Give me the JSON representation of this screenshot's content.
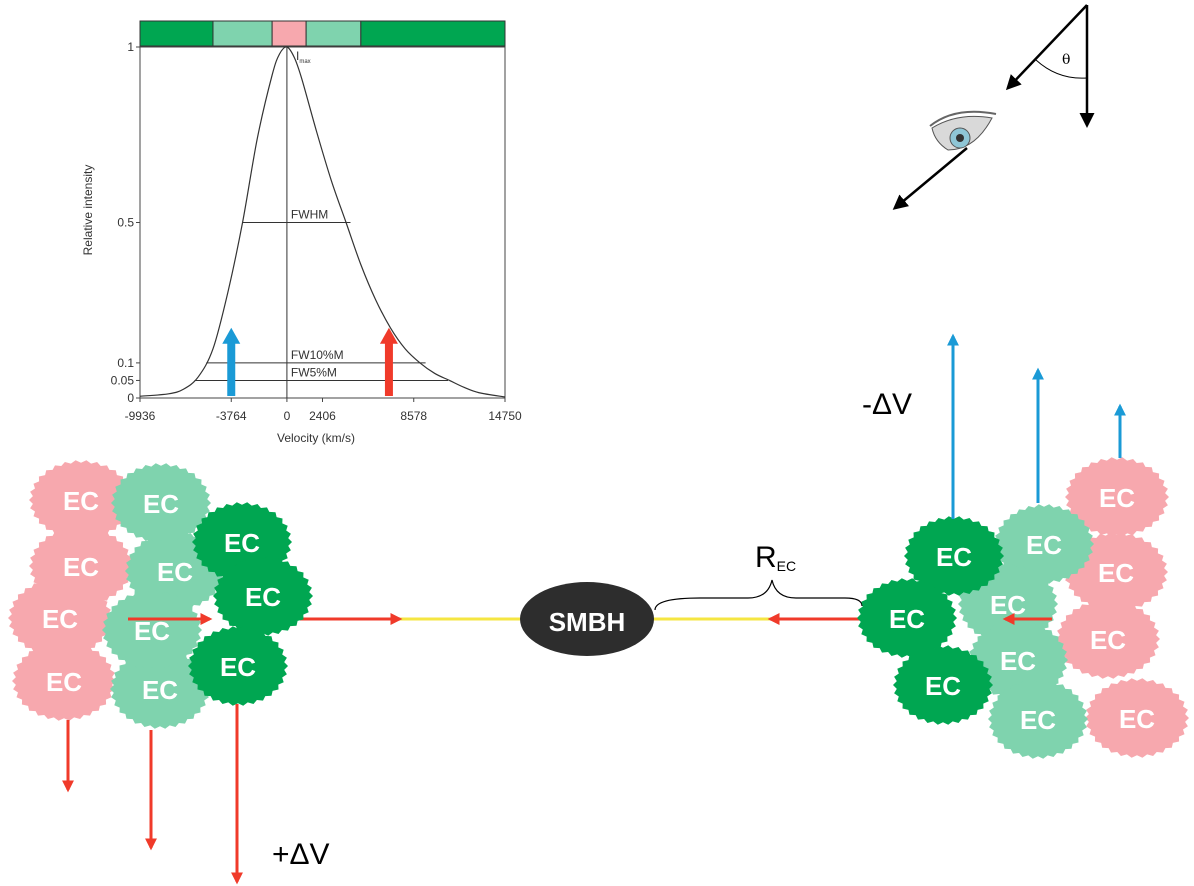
{
  "chart_data": {
    "type": "line",
    "xlabel": "Velocity (km/s)",
    "ylabel": "Relative intensity",
    "xlim": [
      -9936,
      14750
    ],
    "ylim": [
      0,
      1
    ],
    "x_ticks": [
      "-9936",
      "-3764",
      "0",
      "2406",
      "8578",
      "14750"
    ],
    "y_ticks": [
      "0",
      "0.05",
      "0.1",
      "0.5",
      "1"
    ],
    "peak_label": "I",
    "peak_label_sub": "max",
    "width_levels": [
      {
        "label": "FWHM",
        "y": 0.5,
        "x_left": -2980,
        "x_right": 4300
      },
      {
        "label": "FW10%M",
        "y": 0.1,
        "x_left": -5450,
        "x_right": 9380
      },
      {
        "label": "FW5%M",
        "y": 0.05,
        "x_left": -6250,
        "x_right": 10900
      }
    ],
    "profile_x": [
      -9936,
      -8000,
      -7000,
      -6000,
      -5000,
      -4000,
      -3000,
      -2000,
      -1000,
      -500,
      0,
      500,
      1000,
      2000,
      3000,
      4000,
      5000,
      6000,
      7000,
      8000,
      9000,
      10000,
      11000,
      12000,
      13000,
      14750
    ],
    "profile_y": [
      0.005,
      0.012,
      0.025,
      0.06,
      0.14,
      0.3,
      0.5,
      0.74,
      0.92,
      0.98,
      1.0,
      0.97,
      0.91,
      0.76,
      0.62,
      0.5,
      0.38,
      0.28,
      0.2,
      0.14,
      0.1,
      0.07,
      0.05,
      0.03,
      0.015,
      0.003
    ],
    "arrows": [
      {
        "color": "#1a9ad6",
        "x": -3764,
        "top": 0.2
      },
      {
        "color": "#f03a2a",
        "x": 6900,
        "top": 0.2
      }
    ],
    "colorbar": [
      {
        "x0": -9936,
        "x1": -5000,
        "color": "#00a651"
      },
      {
        "x0": -5000,
        "x1": -1000,
        "color": "#7fd3ae"
      },
      {
        "x0": -1000,
        "x1": 1300,
        "color": "#f7a8ae"
      },
      {
        "x0": 1300,
        "x1": 5000,
        "color": "#7fd3ae"
      },
      {
        "x0": 5000,
        "x1": 14750,
        "color": "#00a651"
      }
    ]
  },
  "diagram": {
    "center_label": "SMBH",
    "cloud_label": "EC",
    "radius_label": "R",
    "radius_sub": "EC",
    "blueshift_label": "-ΔV",
    "redshift_label": "+ΔV",
    "angle_label": "θ"
  },
  "colors": {
    "inner_cloud": "#00a651",
    "middle_cloud": "#7fd3ae",
    "outer_cloud": "#f7a8ae",
    "red_arrow": "#f03a2a",
    "blue_arrow": "#1a9ad6",
    "axis_line": "#f5e642",
    "smbh": "#2d2d2d"
  }
}
